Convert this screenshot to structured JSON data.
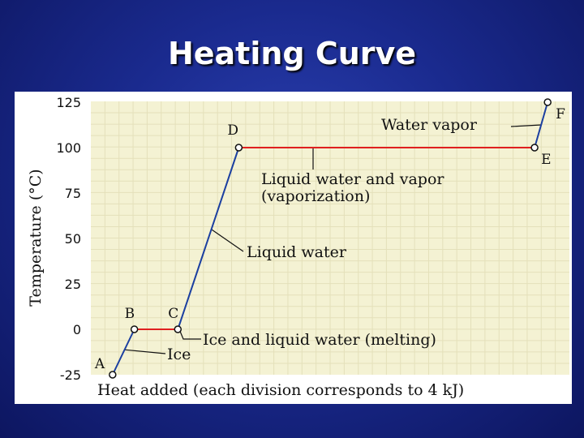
{
  "slide": {
    "title": "Heating Curve"
  },
  "chart_data": {
    "type": "line",
    "title": "Heating Curve",
    "xlabel": "Heat added (each division corresponds to 4 kJ)",
    "ylabel": "Temperature (°C)",
    "ylim": [
      -25,
      125
    ],
    "xlim": [
      0,
      11
    ],
    "yticks": [
      "125",
      "100",
      "75",
      "50",
      "25",
      "0",
      "-25"
    ],
    "grid": true,
    "points": [
      {
        "label": "A",
        "x": 0.5,
        "y": -25
      },
      {
        "label": "B",
        "x": 1,
        "y": 0
      },
      {
        "label": "C",
        "x": 2,
        "y": 0
      },
      {
        "label": "D",
        "x": 3.4,
        "y": 100
      },
      {
        "label": "E",
        "x": 10.2,
        "y": 100
      },
      {
        "label": "F",
        "x": 10.5,
        "y": 125
      }
    ],
    "segments": [
      {
        "from": "A",
        "to": "B",
        "color": "#1b3fa0"
      },
      {
        "from": "B",
        "to": "C",
        "color": "#e02020"
      },
      {
        "from": "C",
        "to": "D",
        "color": "#1b3fa0"
      },
      {
        "from": "D",
        "to": "E",
        "color": "#e02020"
      },
      {
        "from": "E",
        "to": "F",
        "color": "#1b3fa0"
      }
    ],
    "annotations": [
      {
        "name": "ice",
        "lines": [
          "Ice"
        ]
      },
      {
        "name": "melting",
        "lines": [
          "Ice and liquid water (melting)"
        ]
      },
      {
        "name": "liquid-water",
        "lines": [
          "Liquid water"
        ]
      },
      {
        "name": "vaporization",
        "lines": [
          "Liquid water and vapor",
          "(vaporization)"
        ]
      },
      {
        "name": "water-vapor",
        "lines": [
          "Water vapor"
        ]
      }
    ]
  }
}
